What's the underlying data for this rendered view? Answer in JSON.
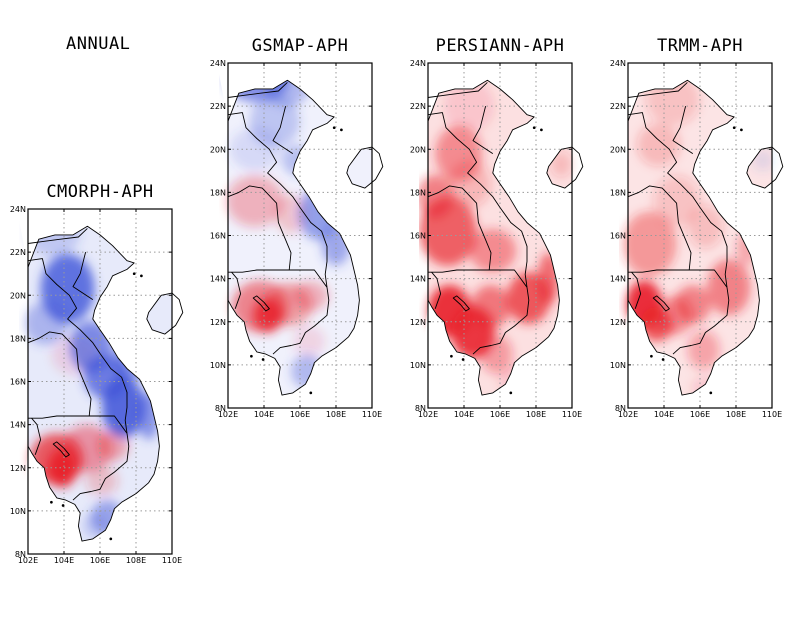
{
  "main_title": "ANNUAL",
  "panels": [
    {
      "title": "CMORPH-APH"
    },
    {
      "title": "GSMAP-APH"
    },
    {
      "title": "PERSIANN-APH"
    },
    {
      "title": "TRMM-APH"
    }
  ],
  "axis": {
    "lon_ticks": [
      "102E",
      "104E",
      "106E",
      "108E",
      "110E"
    ],
    "lat_ticks": [
      "8N",
      "10N",
      "12N",
      "14N",
      "16N",
      "18N",
      "20N",
      "22N",
      "24N"
    ],
    "lon_range": [
      102,
      110
    ],
    "lat_range": [
      8,
      24
    ]
  },
  "colors": {
    "positive": "#e8202a",
    "negative": "#3a4fd8",
    "neutral": "#ffffff",
    "coast": "#000000",
    "grid": "#9a9a9a"
  },
  "chart_data": [
    {
      "type": "heatmap",
      "title": "CMORPH-APH",
      "x_range": [
        102,
        110
      ],
      "y_range": [
        8,
        24
      ],
      "pattern": "north-and-central-highlands-blue, cambodia-red-core"
    },
    {
      "type": "heatmap",
      "title": "GSMAP-APH",
      "x_range": [
        102,
        110
      ],
      "y_range": [
        8,
        24
      ],
      "pattern": "north-blue, cambodia-red, coast-blue"
    },
    {
      "type": "heatmap",
      "title": "PERSIANN-APH",
      "x_range": [
        102,
        110
      ],
      "y_range": [
        8,
        24
      ],
      "pattern": "widespread-red, strong-cambodia-red"
    },
    {
      "type": "heatmap",
      "title": "TRMM-APH",
      "x_range": [
        102,
        110
      ],
      "y_range": [
        8,
        24
      ],
      "pattern": "light-red, cambodia-red-core"
    }
  ]
}
